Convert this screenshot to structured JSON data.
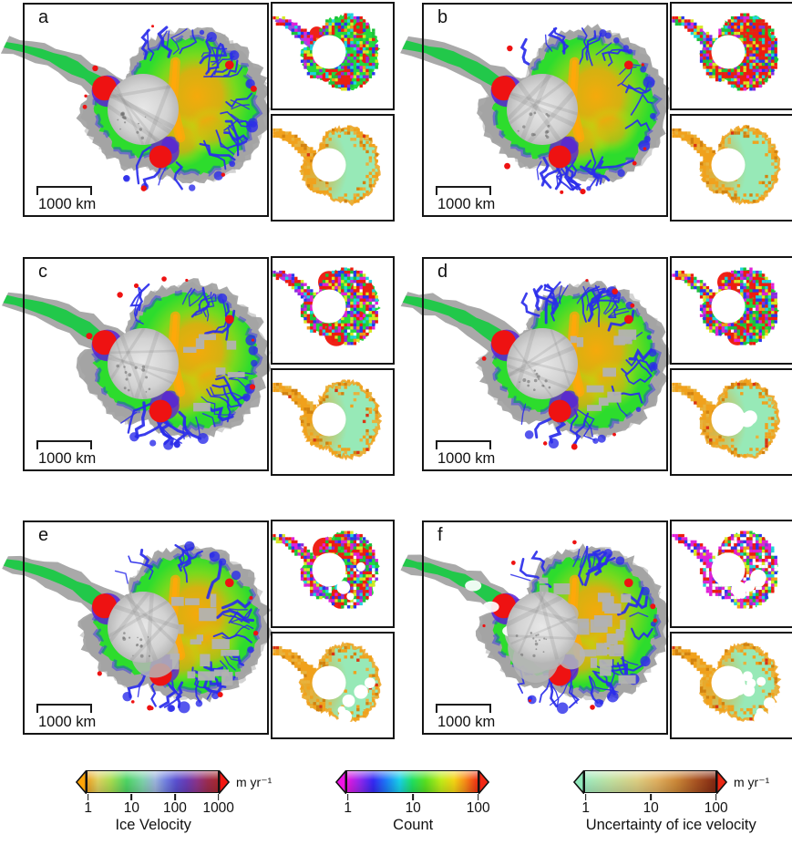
{
  "figure": {
    "panels": [
      {
        "label": "a",
        "scale_bar_label": "1000 km",
        "coverage": {
          "gray_patches": 0,
          "west_patches": 0,
          "polar_halo": 0,
          "white_gaps": 0,
          "count_red": 0.15,
          "count_magenta": 0.05,
          "count_white": 0.0,
          "count_white_blobs": 0,
          "unc_white_blobs": 0,
          "count_red_blobs": [
            [
              -0.45,
              -0.38,
              0.16
            ],
            [
              0.5,
              -0.5,
              0.13
            ],
            [
              0.12,
              0.5,
              0.2
            ],
            [
              -0.25,
              0.45,
              0.1
            ],
            [
              0.62,
              0.1,
              0.09
            ]
          ],
          "seed": 11
        }
      },
      {
        "label": "b",
        "scale_bar_label": "1000 km",
        "coverage": {
          "gray_patches": 0,
          "west_patches": 0,
          "polar_halo": 0,
          "white_gaps": 0,
          "count_red": 0.34,
          "count_magenta": 0.05,
          "count_white": 0.0,
          "count_white_blobs": 0,
          "unc_white_blobs": 0,
          "count_red_blobs": [
            [
              0.05,
              -0.52,
              0.22
            ],
            [
              0.5,
              -0.2,
              0.26
            ],
            [
              0.42,
              0.3,
              0.3
            ],
            [
              0.15,
              0.55,
              0.18
            ],
            [
              -0.3,
              -0.32,
              0.1
            ]
          ],
          "seed": 22
        }
      },
      {
        "label": "c",
        "scale_bar_label": "1000 km",
        "coverage": {
          "gray_patches": 7,
          "west_patches": 0,
          "polar_halo": 0,
          "white_gaps": 0,
          "count_red": 0.2,
          "count_magenta": 0.1,
          "count_white": 0.02,
          "count_white_blobs": 0,
          "unc_white_blobs": 0,
          "count_red_blobs": [
            [
              -0.18,
              -0.5,
              0.24
            ],
            [
              0.55,
              -0.32,
              0.26
            ],
            [
              -0.02,
              0.5,
              0.26
            ],
            [
              0.5,
              0.15,
              0.1
            ]
          ],
          "seed": 33
        }
      },
      {
        "label": "d",
        "scale_bar_label": "1000 km",
        "coverage": {
          "gray_patches": 10,
          "west_patches": 0,
          "polar_halo": 0,
          "white_gaps": 0,
          "count_red": 0.22,
          "count_magenta": 0.12,
          "count_white": 0.03,
          "count_white_blobs": 0,
          "unc_white_blobs": 2,
          "count_red_blobs": [
            [
              -0.2,
              -0.5,
              0.22
            ],
            [
              0.5,
              -0.38,
              0.24
            ],
            [
              0.02,
              0.52,
              0.22
            ],
            [
              0.6,
              0.1,
              0.1
            ]
          ],
          "seed": 44
        }
      },
      {
        "label": "e",
        "scale_bar_label": "1000 km",
        "coverage": {
          "gray_patches": 16,
          "west_patches": 0,
          "polar_halo": 0.45,
          "white_gaps": 0,
          "count_red": 0.22,
          "count_magenta": 0.1,
          "count_white": 0.06,
          "count_white_blobs": 3,
          "unc_white_blobs": 5,
          "count_red_blobs": [
            [
              -0.28,
              -0.42,
              0.26
            ],
            [
              0.5,
              -0.28,
              0.22
            ],
            [
              0.08,
              0.5,
              0.24
            ],
            [
              0.55,
              0.25,
              0.12
            ]
          ],
          "seed": 55
        }
      },
      {
        "label": "f",
        "scale_bar_label": "1000 km",
        "coverage": {
          "gray_patches": 26,
          "west_patches": 6,
          "polar_halo": 0.9,
          "white_gaps": 3,
          "count_red": 0.18,
          "count_magenta": 0.2,
          "count_white": 0.17,
          "count_white_blobs": 6,
          "unc_white_blobs": 9,
          "count_red_blobs": [
            [
              -0.08,
              -0.45,
              0.26
            ],
            [
              0.45,
              -0.32,
              0.26
            ],
            [
              0.12,
              0.42,
              0.16
            ],
            [
              -0.4,
              -0.05,
              0.1
            ]
          ],
          "seed": 66
        }
      }
    ],
    "colorbars": [
      {
        "title": "Ice Velocity",
        "unit": "m yr⁻¹",
        "tick_labels": [
          "1",
          "10",
          "100",
          "1000"
        ],
        "scale": "logarithmic",
        "range": [
          1,
          1000
        ],
        "left_arrow_color": "#ffa408",
        "right_arrow_color": "#f31812",
        "gradient": [
          [
            0,
            "#eda424"
          ],
          [
            0.08,
            "#ddd060"
          ],
          [
            0.18,
            "#a8dc50"
          ],
          [
            0.3,
            "#4cd464"
          ],
          [
            0.42,
            "#7cd2a8"
          ],
          [
            0.52,
            "#9cb4dc"
          ],
          [
            0.6,
            "#7280e0"
          ],
          [
            0.68,
            "#5a50d0"
          ],
          [
            0.76,
            "#6a3cb4"
          ],
          [
            0.84,
            "#8c3488"
          ],
          [
            0.92,
            "#9c2c50"
          ],
          [
            1,
            "#a82830"
          ]
        ]
      },
      {
        "title": "Count",
        "unit": "",
        "tick_labels": [
          "1",
          "10",
          "100"
        ],
        "scale": "logarithmic",
        "range": [
          1,
          100
        ],
        "left_arrow_color": "#ee14e4",
        "right_arrow_color": "#f22814",
        "gradient": [
          [
            0,
            "#e818e0"
          ],
          [
            0.1,
            "#9028ee"
          ],
          [
            0.2,
            "#3428f4"
          ],
          [
            0.3,
            "#1c7cf8"
          ],
          [
            0.4,
            "#18d0e8"
          ],
          [
            0.5,
            "#20e060"
          ],
          [
            0.6,
            "#58e020"
          ],
          [
            0.72,
            "#c0ec18"
          ],
          [
            0.82,
            "#f4d414"
          ],
          [
            0.9,
            "#f89018"
          ],
          [
            1,
            "#f03014"
          ]
        ]
      },
      {
        "title": "Uncertainty of ice velocity",
        "unit": "m yr⁻¹",
        "tick_labels": [
          "1",
          "10",
          "100"
        ],
        "scale": "logarithmic",
        "range": [
          1,
          100
        ],
        "left_arrow_color": "#8fe8ba",
        "right_arrow_color": "#ea2814",
        "gradient": [
          [
            0,
            "#9eeabf"
          ],
          [
            0.2,
            "#c2e0a0"
          ],
          [
            0.4,
            "#dcce82"
          ],
          [
            0.55,
            "#e0b060"
          ],
          [
            0.7,
            "#cc8838"
          ],
          [
            0.85,
            "#aa5422"
          ],
          [
            1,
            "#832812"
          ]
        ]
      }
    ],
    "map_colors": {
      "margin_gray": "#a9a9a9",
      "margin_gray_dark": "#9e9e9e",
      "interior_green": "#2ddc2d",
      "fast_blue": "#2a2cea",
      "shelf_red": "#ee1212",
      "plateau_orange": "#ffa70a",
      "purple": "#5b21d6",
      "patch_gray": "#b2b2b2",
      "polar_light": "#e8e8e8",
      "polar_dark": "#b9b9b9",
      "count_base_green": "#23d83e",
      "count_green2": "#1bc23a",
      "count_red": "#ee1b10",
      "count_magenta": "#e020d8",
      "count_purple": "#8a2ae0",
      "count_blue": "#2a35ee",
      "count_cyan": "#1fd3de",
      "count_yellow": "#d8e822",
      "count_orange": "#f59a1a",
      "unc_base_mint": "#97e9b7",
      "unc_orange": "#f0a11c",
      "unc_tan": "#e8b23c",
      "unc_dark": "#d2820f",
      "unc_red": "#d93612"
    }
  }
}
